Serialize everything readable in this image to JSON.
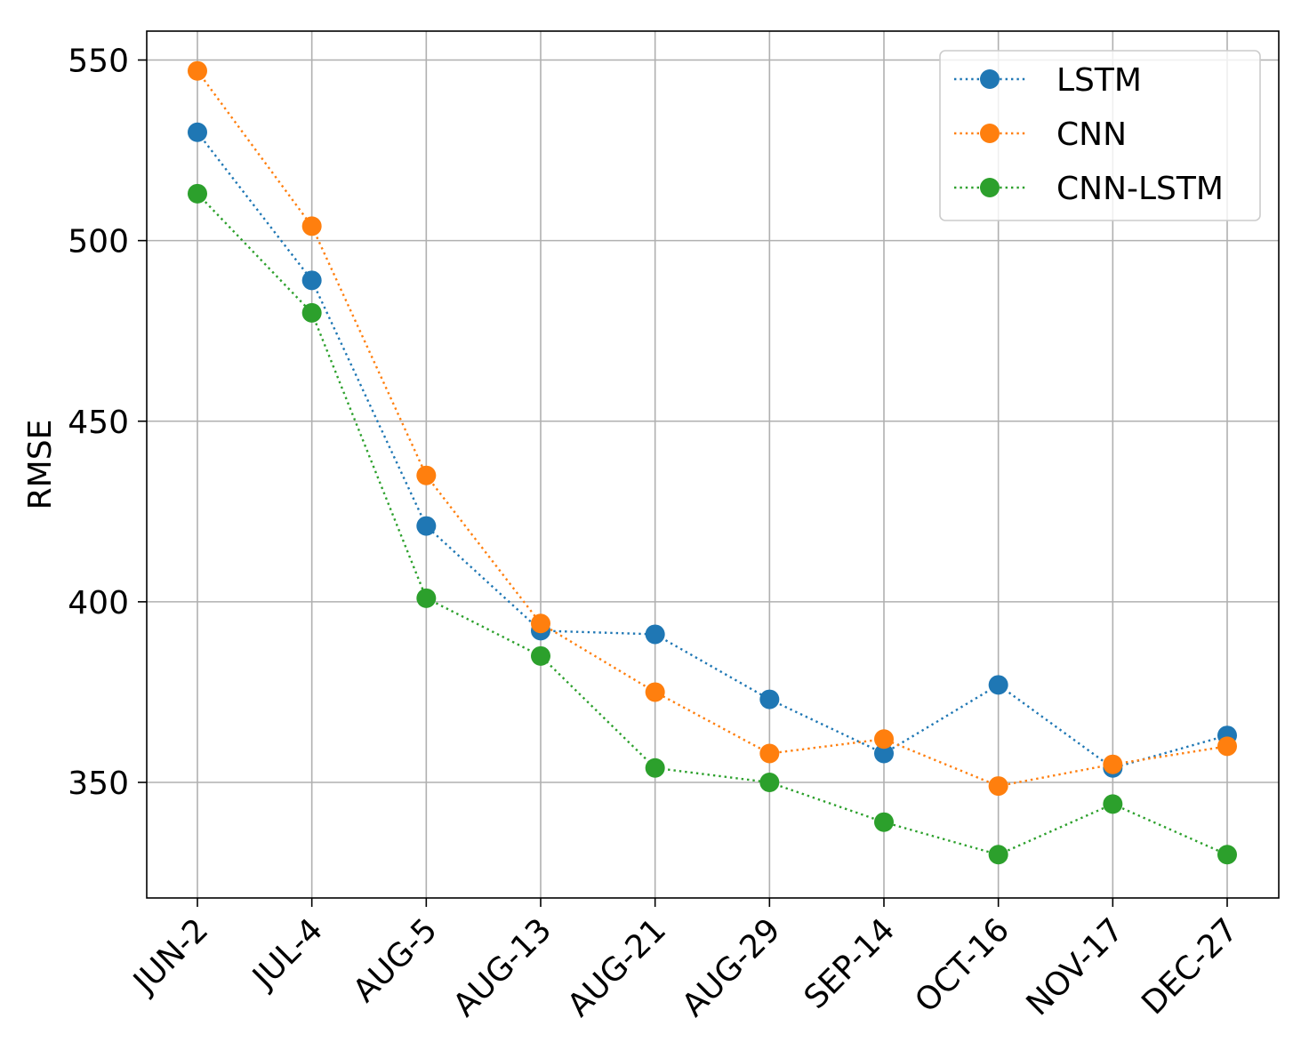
{
  "chart_data": {
    "type": "line",
    "title": "",
    "xlabel": "",
    "ylabel": "RMSE",
    "categories": [
      "JUN-2",
      "JUL-4",
      "AUG-5",
      "AUG-13",
      "AUG-21",
      "AUG-29",
      "SEP-14",
      "OCT-16",
      "NOV-17",
      "DEC-27"
    ],
    "ylim": [
      318,
      558
    ],
    "yticks": [
      350,
      400,
      450,
      500,
      550
    ],
    "grid": true,
    "legend": "top-right",
    "line_style": "dotted",
    "marker": "circle",
    "series": [
      {
        "name": "LSTM",
        "color": "#1f77b4",
        "values": [
          530,
          489,
          421,
          392,
          391,
          373,
          358,
          377,
          354,
          363
        ]
      },
      {
        "name": "CNN",
        "color": "#ff7f0e",
        "values": [
          547,
          504,
          435,
          394,
          375,
          358,
          362,
          349,
          355,
          360
        ]
      },
      {
        "name": "CNN-LSTM",
        "color": "#2ca02c",
        "values": [
          513,
          480,
          401,
          385,
          354,
          350,
          339,
          330,
          344,
          330
        ]
      }
    ]
  }
}
